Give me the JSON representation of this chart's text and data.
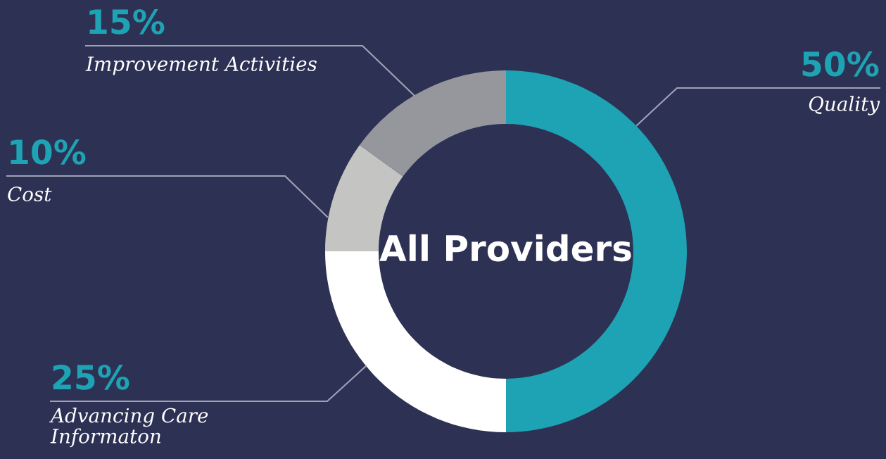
{
  "chart_data": {
    "type": "donut",
    "title": "All Providers",
    "categories": [
      "Quality",
      "Advancing Care\nInformaton",
      "Cost",
      "Improvement Activities"
    ],
    "values": [
      50,
      25,
      10,
      15
    ],
    "value_labels": [
      "50%",
      "25%",
      "10%",
      "15%"
    ],
    "colors": [
      "#1ea3b4",
      "#ffffff",
      "#c4c5c3",
      "#96979c"
    ]
  }
}
